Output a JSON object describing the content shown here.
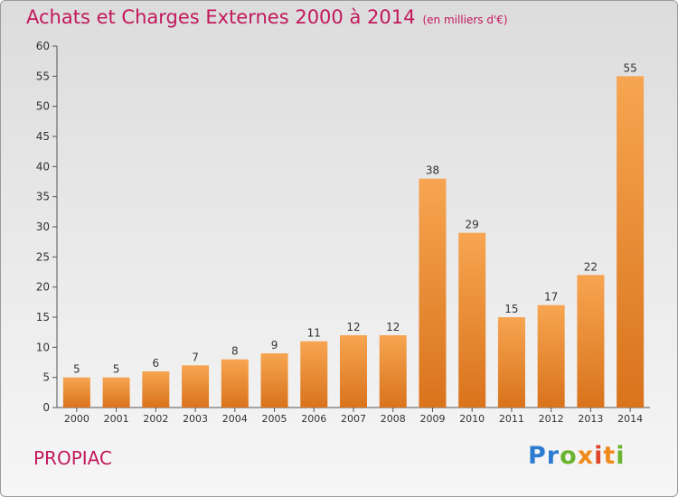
{
  "header": {
    "title": "Achats et Charges Externes 2000 à 2014",
    "unit": "(en milliers d'€)"
  },
  "footer": {
    "commune": "PROPIAC",
    "logo_text": "Proxiti"
  },
  "colors": {
    "title": "#c2185b",
    "bar_light": "#f7a551",
    "bar_dark": "#d9731c"
  },
  "chart_data": {
    "type": "bar",
    "title": "Achats et Charges Externes 2000 à 2014",
    "categories": [
      "2000",
      "2001",
      "2002",
      "2003",
      "2004",
      "2005",
      "2006",
      "2007",
      "2008",
      "2009",
      "2010",
      "2011",
      "2012",
      "2013",
      "2014"
    ],
    "values": [
      5,
      5,
      6,
      7,
      8,
      9,
      11,
      12,
      12,
      38,
      29,
      15,
      17,
      22,
      55
    ],
    "ylim": [
      0,
      60
    ],
    "yticks": [
      0,
      5,
      10,
      15,
      20,
      25,
      30,
      35,
      40,
      45,
      50,
      55,
      60
    ],
    "grid": false,
    "data_labels": true
  }
}
